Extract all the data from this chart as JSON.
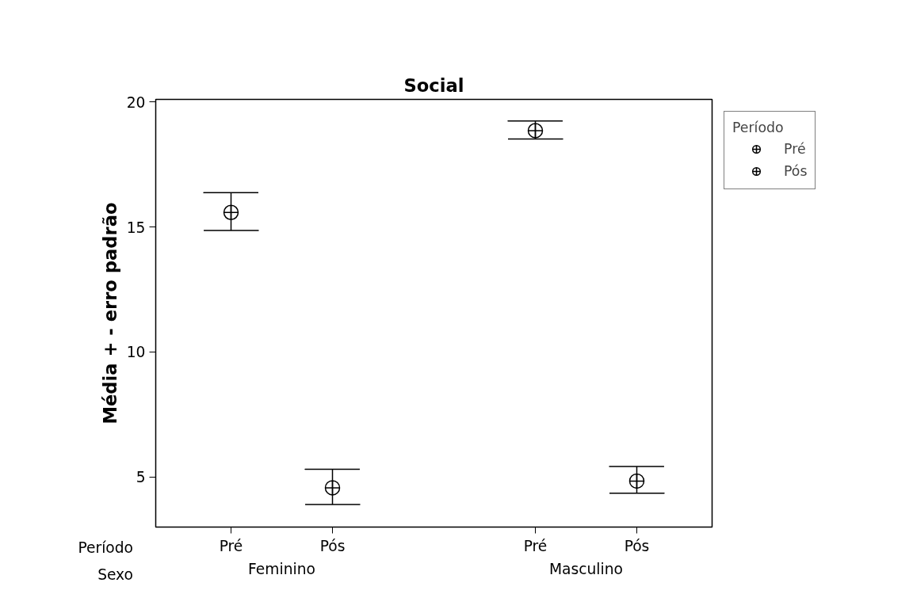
{
  "chart_data": {
    "type": "scatter",
    "title": "Social",
    "ylabel": "Média + - erro padrão",
    "legend_title": "Período",
    "categories": [
      "Pré",
      "Pós",
      "Pré",
      "Pós"
    ],
    "annotations": [
      "Período",
      "Sexo",
      "Feminino",
      "Masculino"
    ],
    "series": [
      {
        "name": "Pré",
        "color": "#000000",
        "values": [
          15.58,
          null,
          18.85,
          null
        ],
        "errors": [
          [
            14.86,
            16.37
          ],
          null,
          [
            18.52,
            19.24
          ],
          null
        ]
      },
      {
        "name": "Pós",
        "color": "#000000",
        "values": [
          null,
          4.57,
          null,
          4.84
        ],
        "errors": [
          null,
          [
            3.9,
            5.31
          ],
          null,
          [
            4.35,
            5.42
          ]
        ]
      }
    ],
    "marker": "circle",
    "ylim": [
      3.0,
      20.1
    ],
    "yticks": [
      5,
      10,
      15,
      20
    ],
    "grid": false,
    "legend": "top right"
  }
}
